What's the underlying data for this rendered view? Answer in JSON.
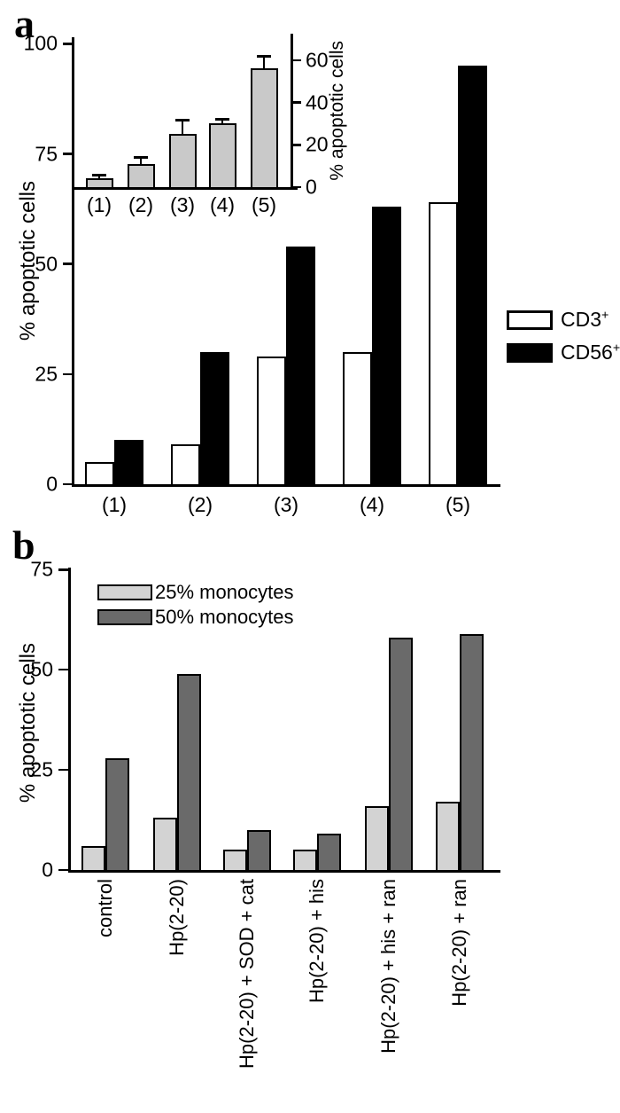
{
  "panels": {
    "a": {
      "label": "a"
    },
    "b": {
      "label": "b"
    }
  },
  "chart_data": [
    {
      "id": "a-main",
      "type": "bar",
      "title": "",
      "categories": [
        "(1)",
        "(2)",
        "(3)",
        "(4)",
        "(5)"
      ],
      "series": [
        {
          "name": "CD3+",
          "values": [
            5,
            9,
            29,
            30,
            64
          ],
          "fill": "#ffffff"
        },
        {
          "name": "CD56+",
          "values": [
            10,
            30,
            54,
            63,
            95
          ],
          "fill": "#000000"
        }
      ],
      "xlabel": "",
      "ylabel": "% apoptotic cells",
      "yticks": [
        0,
        25,
        50,
        75,
        100
      ],
      "ylim": [
        0,
        101.5
      ],
      "grid": false,
      "legend_position": "outside-right"
    },
    {
      "id": "a-inset",
      "type": "bar",
      "title": "",
      "categories": [
        "(1)",
        "(2)",
        "(3)",
        "(4)",
        "(5)"
      ],
      "series": [
        {
          "name": "apoptotic cells",
          "values": [
            4,
            11,
            25,
            30,
            56
          ],
          "errors_plus": [
            1.5,
            3,
            6.5,
            2,
            6
          ],
          "fill": "#c9c9c9"
        }
      ],
      "xlabel": "",
      "ylabel": "% apoptotic cells",
      "yticks": [
        0,
        20,
        40,
        60
      ],
      "ylim": [
        0,
        72.5
      ],
      "y_axis_side": "right",
      "grid": false,
      "legend_position": "none"
    },
    {
      "id": "b",
      "type": "bar",
      "title": "",
      "categories": [
        "control",
        "Hp(2-20)",
        "Hp(2-20) + SOD + cat",
        "Hp(2-20) + his",
        "Hp(2-20) + his + ran",
        "Hp(2-20) + ran"
      ],
      "series": [
        {
          "name": "25% monocytes",
          "values": [
            6,
            13,
            5,
            5,
            16,
            17
          ],
          "fill": "#d3d3d3"
        },
        {
          "name": "50% monocytes",
          "values": [
            28,
            49,
            10,
            9,
            58,
            59
          ],
          "fill": "#6a6a6a"
        }
      ],
      "xlabel": "",
      "ylabel": "% apoptotic cells",
      "yticks": [
        0,
        25,
        50,
        75
      ],
      "ylim": [
        0,
        75.5
      ],
      "xtick_rotation": 90,
      "grid": false,
      "legend_position": "inside-upper-left"
    }
  ],
  "colors": {
    "axis": "#000000",
    "cd3_fill": "#ffffff",
    "cd56_fill": "#000000",
    "inset_fill": "#c9c9c9",
    "monocytes25_fill": "#d3d3d3",
    "monocytes50_fill": "#6a6a6a",
    "background": "#ffffff"
  }
}
